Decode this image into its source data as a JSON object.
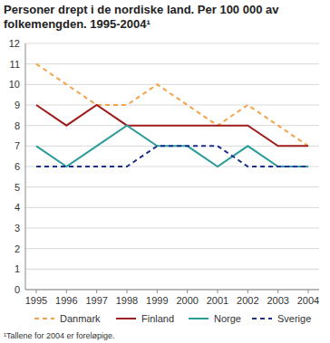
{
  "chart_data": {
    "type": "line",
    "title": "Personer drept i de nordiske land. Per 100 000 av folkemengden. 1995-2004¹",
    "footnote": "¹Tallene for 2004 er foreløpige.",
    "categories": [
      "1995",
      "1996",
      "1997",
      "1998",
      "1999",
      "2000",
      "2001",
      "2002",
      "2003",
      "2004"
    ],
    "series": [
      {
        "name": "Danmark",
        "color": "#f5a34a",
        "line_style": "dashed",
        "values": [
          11,
          10,
          9,
          9,
          10,
          9,
          8,
          9,
          8,
          7
        ]
      },
      {
        "name": "Finland",
        "color": "#9e1c1c",
        "line_style": "solid",
        "values": [
          9,
          8,
          9,
          8,
          8,
          8,
          8,
          8,
          7,
          7
        ]
      },
      {
        "name": "Norge",
        "color": "#2a9d9b",
        "line_style": "solid",
        "values": [
          7,
          6,
          7,
          8,
          7,
          7,
          6,
          7,
          6,
          6
        ]
      },
      {
        "name": "Sverige",
        "color": "#1b2f8c",
        "line_style": "dashed",
        "values": [
          6,
          6,
          6,
          6,
          7,
          7,
          7,
          6,
          6,
          6
        ]
      }
    ],
    "ylim": [
      0,
      12
    ],
    "yticks": [
      0,
      1,
      2,
      3,
      4,
      5,
      6,
      7,
      8,
      9,
      10,
      11,
      12
    ],
    "grid": true,
    "legend": "bottom"
  }
}
